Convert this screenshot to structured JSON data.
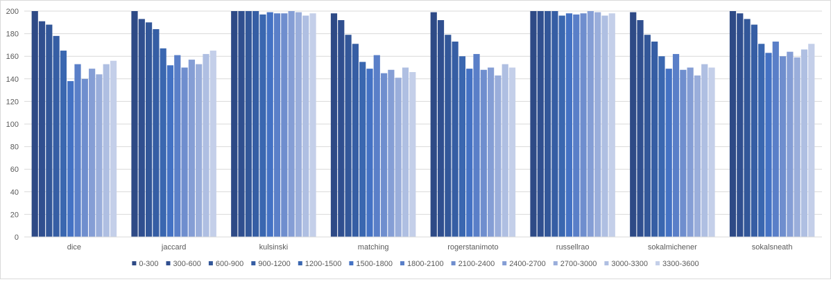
{
  "chart_data": {
    "type": "bar",
    "title": "",
    "xlabel": "",
    "ylabel": "",
    "ylim": [
      0,
      200
    ],
    "yticks": [
      0,
      20,
      40,
      60,
      80,
      100,
      120,
      140,
      160,
      180,
      200
    ],
    "grid": true,
    "legend_position": "bottom",
    "categories": [
      "dice",
      "jaccard",
      "kulsinski",
      "matching",
      "rogerstanimoto",
      "russellrao",
      "sokalmichener",
      "sokalsneath"
    ],
    "series": [
      {
        "name": "0-300",
        "color": "#2e4a86",
        "values": [
          200,
          200,
          200,
          198,
          199,
          200,
          199,
          200
        ]
      },
      {
        "name": "300-600",
        "color": "#304f8f",
        "values": [
          191,
          193,
          200,
          192,
          192,
          200,
          192,
          198
        ]
      },
      {
        "name": "600-900",
        "color": "#335799",
        "values": [
          188,
          190,
          200,
          179,
          179,
          200,
          179,
          193
        ]
      },
      {
        "name": "900-1200",
        "color": "#365ea4",
        "values": [
          178,
          184,
          200,
          171,
          173,
          200,
          173,
          188
        ]
      },
      {
        "name": "1200-1500",
        "color": "#3a67b0",
        "values": [
          165,
          167,
          197,
          155,
          160,
          196,
          160,
          171
        ]
      },
      {
        "name": "1500-1800",
        "color": "#4472c4",
        "values": [
          138,
          152,
          199,
          149,
          149,
          198,
          149,
          163
        ]
      },
      {
        "name": "1800-2100",
        "color": "#5a7fc8",
        "values": [
          153,
          161,
          198,
          161,
          162,
          197,
          162,
          173
        ]
      },
      {
        "name": "2100-2400",
        "color": "#6f8ece",
        "values": [
          140,
          150,
          198,
          145,
          148,
          198,
          148,
          160
        ]
      },
      {
        "name": "2400-2700",
        "color": "#859ed5",
        "values": [
          149,
          157,
          200,
          148,
          150,
          200,
          150,
          164
        ]
      },
      {
        "name": "2700-3000",
        "color": "#9aaedb",
        "values": [
          144,
          153,
          199,
          141,
          143,
          199,
          143,
          159
        ]
      },
      {
        "name": "3000-3300",
        "color": "#afbfe2",
        "values": [
          153,
          162,
          196,
          150,
          153,
          196,
          153,
          166
        ]
      },
      {
        "name": "3300-3600",
        "color": "#c4cfe9",
        "values": [
          156,
          165,
          198,
          146,
          150,
          198,
          150,
          171
        ]
      }
    ]
  }
}
